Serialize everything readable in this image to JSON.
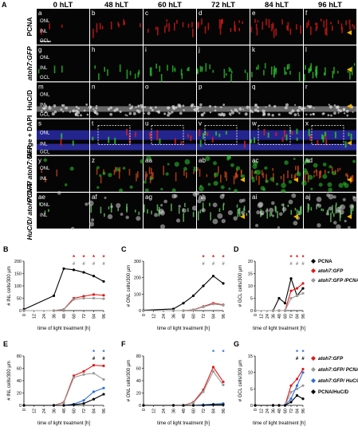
{
  "figure_letter": "A",
  "columns": [
    "0 hLT",
    "48 hLT",
    "60 hLT",
    "72 hLT",
    "84 hLT",
    "96 hLT"
  ],
  "rows": [
    {
      "label": "PCNA",
      "italic": false,
      "color": "#e01919",
      "letters": [
        "a",
        "b",
        "c",
        "d",
        "e",
        "f"
      ]
    },
    {
      "label": "atoh7:GFP",
      "italic": true,
      "color": "#2ec92e",
      "letters": [
        "g",
        "h",
        "i",
        "j",
        "k",
        "l"
      ]
    },
    {
      "label": "HuC/D",
      "italic": false,
      "color": "#d8d8d8",
      "letters": [
        "m",
        "n",
        "o",
        "p",
        "q",
        "r"
      ]
    },
    {
      "label": "Merge + DAPI",
      "italic": false,
      "color": "#4a4adf",
      "letters": [
        "s",
        "t",
        "u",
        "v",
        "w",
        "x"
      ]
    },
    {
      "label": "PCNA/ atoh7:GFP",
      "italic": true,
      "color": "#d24a1a",
      "letters": [
        "y",
        "z",
        "aa",
        "ab",
        "ac",
        "ad"
      ]
    },
    {
      "label": "HuC/D/ atoh7:GFP",
      "italic": true,
      "color": "#6ed26e",
      "letters": [
        "ae",
        "af",
        "ag",
        "ah",
        "ai",
        "aj"
      ]
    }
  ],
  "layers": {
    "onl": "ONL",
    "inl": "INL",
    "gcl": "GCL"
  },
  "colors": {
    "pcna": "#e01919",
    "gfp": "#2ec92e",
    "hucd": "#333333",
    "gfp_pcna": "#9a9a9a",
    "gfp_hucd": "#2f6fd6",
    "arrow": "#f4b400"
  },
  "chart_data": [
    {
      "panel": "B",
      "type": "line",
      "x": [
        0,
        12,
        24,
        36,
        48,
        60,
        72,
        84,
        96
      ],
      "xlabel": "time of light treatment [h]",
      "ylabel": "# INL cells/300 µm",
      "ylim": [
        0,
        200
      ],
      "yticks": [
        0,
        50,
        100,
        150,
        200
      ],
      "series": [
        {
          "name": "PCNA",
          "color": "#000000",
          "x": [
            0,
            36,
            48,
            60,
            72,
            84,
            96
          ],
          "values": [
            5,
            60,
            170,
            165,
            155,
            140,
            118
          ]
        },
        {
          "name": "atoh7:GFP",
          "color": "#e01919",
          "x": [
            0,
            36,
            48,
            60,
            72,
            84,
            96
          ],
          "values": [
            0,
            0,
            5,
            50,
            58,
            65,
            62
          ]
        },
        {
          "name": "atoh7:GFP/PCNA",
          "color": "#9a9a9a",
          "x": [
            0,
            36,
            48,
            60,
            72,
            84,
            96
          ],
          "values": [
            0,
            0,
            4,
            45,
            50,
            50,
            48
          ]
        }
      ],
      "markers": {
        "stars": [
          "*",
          "*",
          "*",
          "*"
        ],
        "hashes": [
          "#",
          "#",
          "#",
          "#"
        ],
        "at_x": [
          60,
          72,
          84,
          96
        ]
      }
    },
    {
      "panel": "C",
      "type": "line",
      "x": [
        0,
        12,
        24,
        36,
        48,
        60,
        72,
        84,
        96
      ],
      "xlabel": "time of light treatment [h]",
      "ylabel": "# ONL cells/300 µm",
      "ylim": [
        0,
        300
      ],
      "yticks": [
        0,
        100,
        200,
        300
      ],
      "series": [
        {
          "name": "PCNA",
          "color": "#000000",
          "x": [
            0,
            36,
            48,
            60,
            72,
            84,
            96
          ],
          "values": [
            2,
            10,
            45,
            90,
            150,
            210,
            165
          ]
        },
        {
          "name": "atoh7:GFP",
          "color": "#e01919",
          "x": [
            0,
            36,
            48,
            60,
            72,
            84,
            96
          ],
          "values": [
            0,
            0,
            0,
            5,
            25,
            45,
            35
          ]
        },
        {
          "name": "atoh7:GFP/PCNA",
          "color": "#9a9a9a",
          "x": [
            0,
            36,
            48,
            60,
            72,
            84,
            96
          ],
          "values": [
            0,
            0,
            0,
            4,
            22,
            40,
            32
          ]
        }
      ],
      "markers": {
        "stars": [
          "*",
          "*",
          "*"
        ],
        "hashes": [
          "#",
          "#",
          "#"
        ],
        "at_x": [
          72,
          84,
          96
        ]
      }
    },
    {
      "panel": "D",
      "type": "line",
      "x": [
        0,
        12,
        24,
        36,
        48,
        60,
        72,
        84,
        96
      ],
      "xlabel": "time of light treatment [h]",
      "ylabel": "# GCL cells/300 µm",
      "ylim": [
        0,
        20
      ],
      "yticks": [
        0,
        5,
        10,
        15,
        20
      ],
      "series": [
        {
          "name": "PCNA",
          "color": "#000000",
          "x": [
            0,
            36,
            48,
            60,
            72,
            84,
            96
          ],
          "values": [
            0,
            0,
            5,
            3,
            13,
            6,
            9
          ]
        },
        {
          "name": "atoh7:GFP",
          "color": "#e01919",
          "x": [
            0,
            36,
            48,
            60,
            72,
            84,
            96
          ],
          "values": [
            0,
            0,
            0,
            0,
            8,
            9,
            11
          ]
        },
        {
          "name": "atoh7:GFP/PCNA",
          "color": "#9a9a9a",
          "x": [
            0,
            36,
            48,
            60,
            72,
            84,
            96
          ],
          "values": [
            0,
            0,
            0,
            0,
            5,
            6,
            7
          ]
        }
      ],
      "markers": {
        "stars": [
          "*",
          "*",
          "*"
        ],
        "hashes": [
          "#",
          "#",
          "#"
        ],
        "at_x": [
          72,
          84,
          96
        ]
      }
    },
    {
      "panel": "E",
      "type": "line",
      "x": [
        0,
        12,
        24,
        36,
        48,
        60,
        72,
        84,
        96
      ],
      "xlabel": "time of light treatment [h]",
      "ylabel": "# INL cells/300 µm",
      "ylim": [
        0,
        80
      ],
      "yticks": [
        0,
        20,
        40,
        60,
        80
      ],
      "series": [
        {
          "name": "atoh7:GFP",
          "color": "#e01919",
          "x": [
            0,
            36,
            48,
            60,
            72,
            84,
            96
          ],
          "values": [
            0,
            0,
            5,
            48,
            55,
            65,
            64
          ]
        },
        {
          "name": "atoh7:GFP/PCNA",
          "color": "#9a9a9a",
          "x": [
            0,
            36,
            48,
            60,
            72,
            84,
            96
          ],
          "values": [
            0,
            0,
            4,
            45,
            50,
            52,
            42
          ]
        },
        {
          "name": "atoh7:GFP/HuC/D",
          "color": "#2f6fd6",
          "x": [
            0,
            36,
            48,
            60,
            72,
            84,
            96
          ],
          "values": [
            0,
            0,
            0,
            2,
            8,
            22,
            28
          ]
        },
        {
          "name": "PCNA/HuC/D",
          "color": "#000000",
          "x": [
            0,
            36,
            48,
            60,
            72,
            84,
            96
          ],
          "values": [
            0,
            0,
            0,
            1,
            3,
            10,
            18
          ]
        }
      ],
      "markers": {
        "stars": [
          "*",
          "*"
        ],
        "hashes": [
          "#",
          "#"
        ],
        "at_x": [
          84,
          96
        ]
      }
    },
    {
      "panel": "F",
      "type": "line",
      "x": [
        0,
        12,
        24,
        36,
        48,
        60,
        72,
        84,
        96
      ],
      "xlabel": "time of light treatment [h]",
      "ylabel": "# ONL cells/300 µm",
      "ylim": [
        0,
        80
      ],
      "yticks": [
        0,
        20,
        40,
        60,
        80
      ],
      "series": [
        {
          "name": "atoh7:GFP",
          "color": "#e01919",
          "x": [
            0,
            36,
            48,
            60,
            72,
            84,
            96
          ],
          "values": [
            0,
            0,
            0,
            5,
            25,
            62,
            38
          ]
        },
        {
          "name": "atoh7:GFP/PCNA",
          "color": "#9a9a9a",
          "x": [
            0,
            36,
            48,
            60,
            72,
            84,
            96
          ],
          "values": [
            0,
            0,
            0,
            4,
            22,
            55,
            33
          ]
        },
        {
          "name": "atoh7:GFP/HuC/D",
          "color": "#2f6fd6",
          "x": [
            0,
            36,
            48,
            60,
            72,
            84,
            96
          ],
          "values": [
            0,
            0,
            0,
            0,
            1,
            2,
            3
          ]
        },
        {
          "name": "PCNA/HuC/D",
          "color": "#000000",
          "x": [
            0,
            36,
            48,
            60,
            72,
            84,
            96
          ],
          "values": [
            0,
            0,
            0,
            0,
            0,
            1,
            1
          ]
        }
      ],
      "markers": {
        "stars": [
          "*",
          "*"
        ],
        "hashes": [],
        "at_x": [
          84,
          96
        ]
      }
    },
    {
      "panel": "G",
      "type": "line",
      "x": [
        0,
        12,
        24,
        36,
        48,
        60,
        72,
        84,
        96
      ],
      "xlabel": "time of light treatment [h]",
      "ylabel": "# GCL cells/300 µm",
      "ylim": [
        0,
        15
      ],
      "yticks": [
        0,
        5,
        10,
        15
      ],
      "series": [
        {
          "name": "atoh7:GFP",
          "color": "#e01919",
          "x": [
            0,
            36,
            48,
            60,
            72,
            84,
            96
          ],
          "values": [
            0,
            0,
            0,
            0,
            6,
            8,
            11
          ]
        },
        {
          "name": "atoh7:GFP/PCNA",
          "color": "#9a9a9a",
          "x": [
            0,
            36,
            48,
            60,
            72,
            84,
            96
          ],
          "values": [
            0,
            0,
            0,
            0,
            4,
            5,
            6
          ]
        },
        {
          "name": "atoh7:GFP/HuC/D",
          "color": "#2f6fd6",
          "x": [
            0,
            36,
            48,
            60,
            72,
            84,
            96
          ],
          "values": [
            0,
            0,
            0,
            0,
            2,
            6,
            10
          ]
        },
        {
          "name": "PCNA/HuC/D",
          "color": "#000000",
          "x": [
            0,
            36,
            48,
            60,
            72,
            84,
            96
          ],
          "values": [
            0,
            0,
            0,
            0,
            1,
            3,
            2
          ]
        }
      ],
      "markers": {
        "stars": [
          "*",
          "*"
        ],
        "hashes": [
          "#",
          "#"
        ],
        "at_x": [
          84,
          96
        ]
      }
    }
  ],
  "legend_top": [
    "PCNA",
    "atoh7:GFP",
    "atoh7:GFP /PCNA"
  ],
  "legend_bottom": [
    "atoh7:GFP",
    "atoh7:GFP/ PCNA",
    "atoh7:GFP/ HuC/D",
    "PCNA/HuC/D"
  ]
}
